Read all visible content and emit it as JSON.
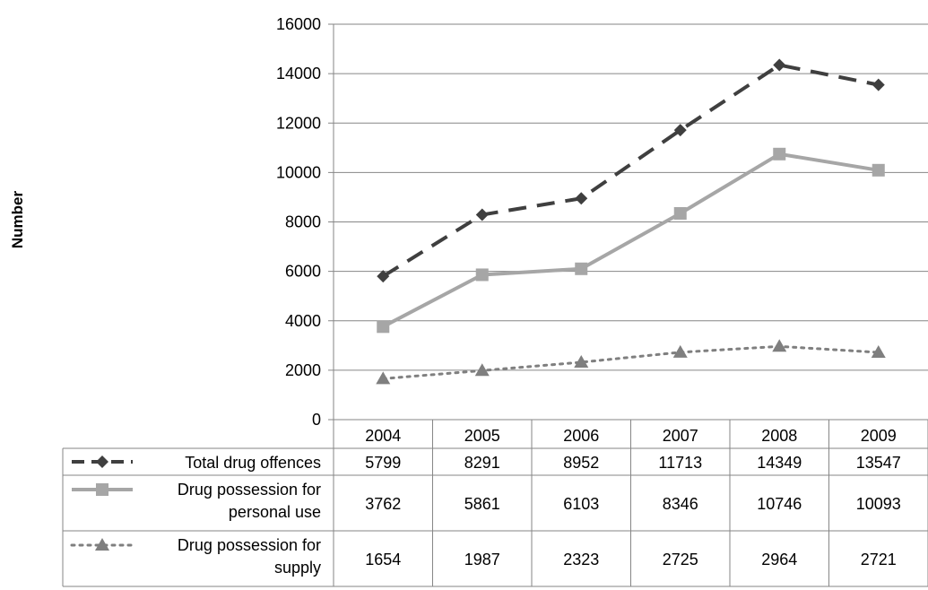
{
  "chart_data": {
    "type": "line",
    "ylabel": "Number",
    "ylim": [
      0,
      16000
    ],
    "yticks": [
      0,
      2000,
      4000,
      6000,
      8000,
      10000,
      12000,
      14000,
      16000
    ],
    "categories": [
      "2004",
      "2005",
      "2006",
      "2007",
      "2008",
      "2009"
    ],
    "grid": true,
    "legend_placement": "data-table-left",
    "series": [
      {
        "name": "Total drug offences",
        "name_lines": [
          "Total drug offences"
        ],
        "values": [
          5799,
          8291,
          8952,
          11713,
          14349,
          13547
        ],
        "color": "#3f3f3f",
        "line_style": "dashed",
        "marker": "diamond"
      },
      {
        "name": "Drug possession for personal use",
        "name_lines": [
          "Drug possession for",
          "personal use"
        ],
        "values": [
          3762,
          5861,
          6103,
          8346,
          10746,
          10093
        ],
        "color": "#a6a6a6",
        "line_style": "solid",
        "marker": "square"
      },
      {
        "name": "Drug possession for supply",
        "name_lines": [
          "Drug possession for",
          "supply"
        ],
        "values": [
          1654,
          1987,
          2323,
          2725,
          2964,
          2721
        ],
        "color": "#7f7f7f",
        "line_style": "dotted",
        "marker": "triangle"
      }
    ]
  }
}
